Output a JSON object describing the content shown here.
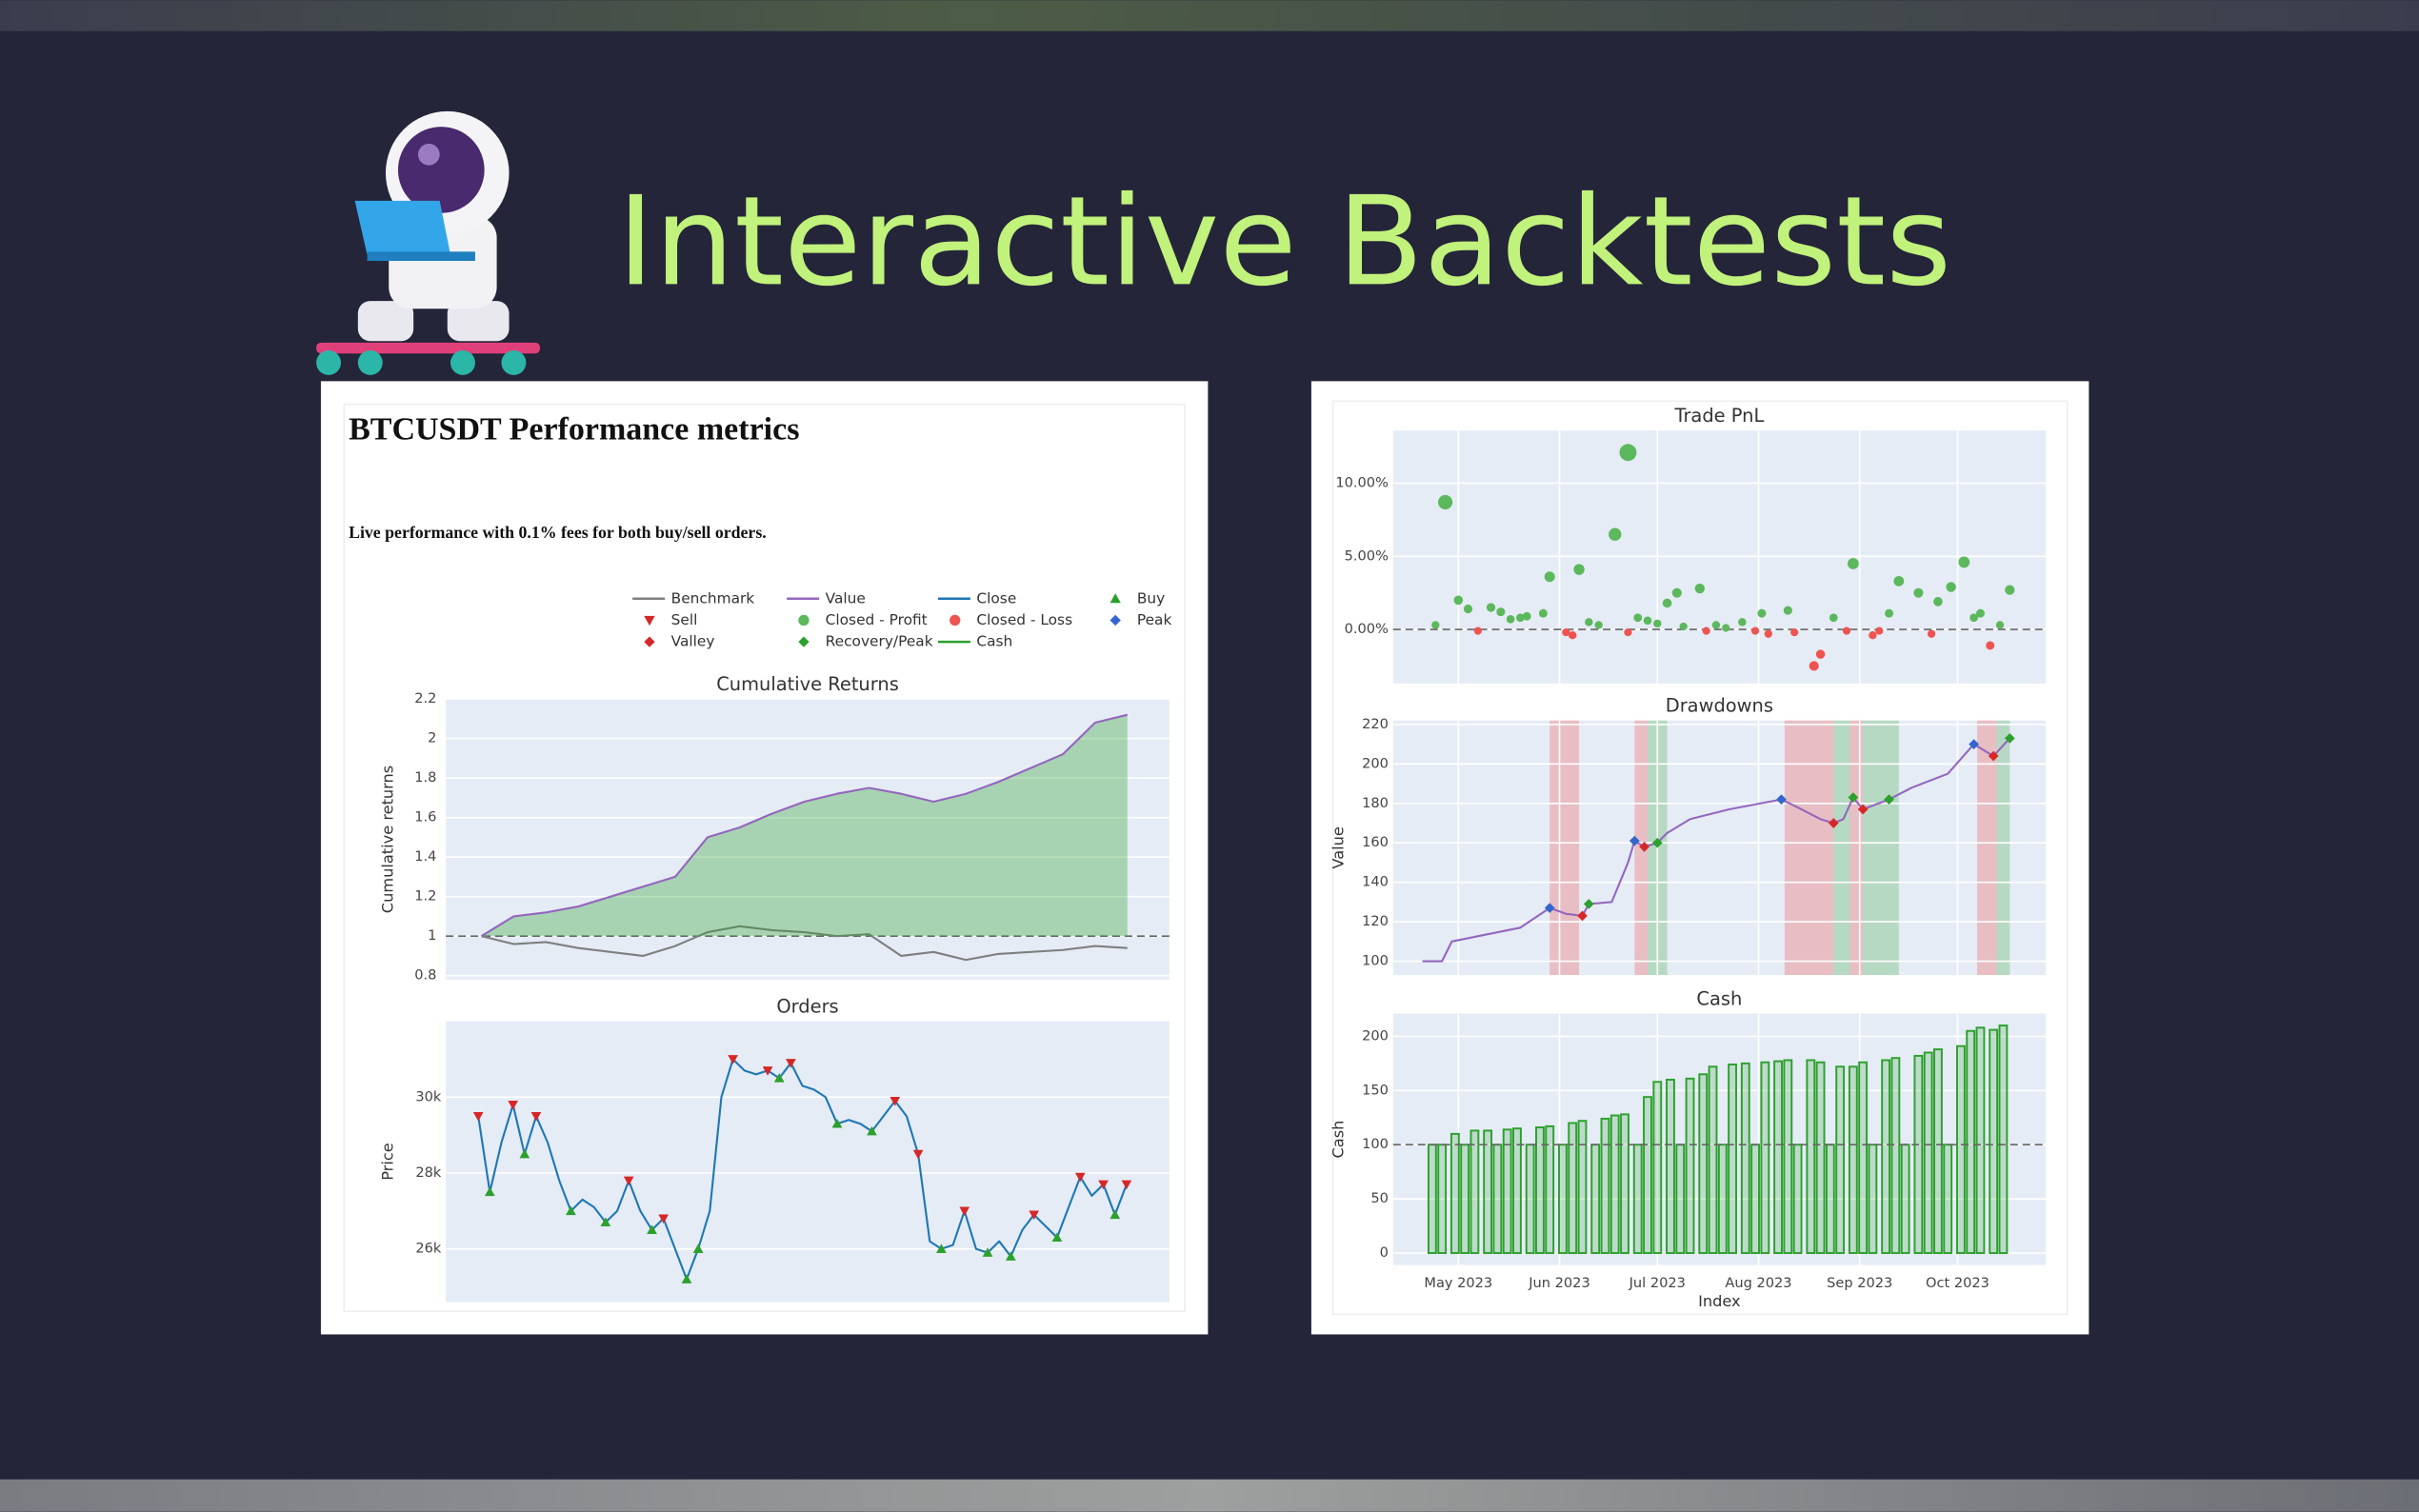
{
  "title": "Interactive Backtests",
  "left_panel": {
    "heading": "BTCUSDT Performance metrics",
    "subtitle": "Live performance with 0.1% fees for both buy/sell orders."
  },
  "chart_data": [
    {
      "type": "line",
      "title": "Cumulative Returns",
      "ylabel": "Cumulative returns",
      "x": [
        0,
        1,
        2,
        3,
        4,
        5,
        6,
        7,
        8,
        9,
        10,
        11,
        12,
        13,
        14,
        15,
        16,
        17,
        18,
        19,
        20
      ],
      "xlim": [
        -1.1,
        21.3
      ],
      "ylim": [
        0.78,
        2.2
      ],
      "yticks": [
        0.8,
        1,
        1.2,
        1.4,
        1.6,
        1.8,
        2,
        2.2
      ],
      "baseline": 1,
      "grid": true,
      "series": [
        {
          "name": "Benchmark",
          "color": "#7f7f7f",
          "values": [
            1.0,
            0.96,
            0.97,
            0.94,
            0.92,
            0.9,
            0.95,
            1.02,
            1.05,
            1.03,
            1.02,
            1.0,
            1.01,
            0.9,
            0.92,
            0.88,
            0.91,
            0.92,
            0.93,
            0.95,
            0.94
          ]
        },
        {
          "name": "Value",
          "color": "#9467bd",
          "fill": "rgba(44,160,44,0.33)",
          "values": [
            1.0,
            1.1,
            1.12,
            1.15,
            1.2,
            1.25,
            1.3,
            1.5,
            1.55,
            1.62,
            1.68,
            1.72,
            1.75,
            1.72,
            1.68,
            1.72,
            1.78,
            1.85,
            1.92,
            2.08,
            2.12
          ]
        }
      ]
    },
    {
      "type": "line",
      "title": "Orders",
      "ylabel": "Price",
      "x": [
        0,
        1,
        2,
        3,
        4,
        5,
        6,
        7,
        8,
        9,
        10,
        11,
        12,
        13,
        14,
        15,
        16,
        17,
        18,
        19,
        20,
        21,
        22,
        23,
        24,
        25,
        26,
        27,
        28,
        29,
        30,
        31,
        32,
        33,
        34,
        35,
        36,
        37,
        38,
        39,
        40,
        41,
        42,
        43,
        44,
        45,
        46,
        47,
        48,
        49,
        50,
        51,
        52,
        53,
        54,
        55,
        56
      ],
      "xlim": [
        -2.8,
        59.7
      ],
      "ylim": [
        24600,
        32000
      ],
      "yticks": [
        {
          "value": 26000,
          "label": "26k"
        },
        {
          "value": 28000,
          "label": "28k"
        },
        {
          "value": 30000,
          "label": "30k"
        }
      ],
      "grid": true,
      "series": [
        {
          "name": "Close",
          "color": "#1f77b4",
          "values": [
            29500,
            27500,
            28800,
            29800,
            28500,
            29500,
            28800,
            27800,
            27000,
            27300,
            27100,
            26700,
            27000,
            27800,
            27000,
            26500,
            26800,
            26000,
            25200,
            26000,
            27000,
            30000,
            31000,
            30700,
            30600,
            30700,
            30500,
            30900,
            30300,
            30200,
            30000,
            29300,
            29400,
            29300,
            29100,
            29500,
            29900,
            29500,
            28500,
            26200,
            26000,
            26100,
            27000,
            26000,
            25900,
            26200,
            25800,
            26500,
            26900,
            26600,
            26300,
            27100,
            27900,
            27400,
            27700,
            26900,
            27700
          ]
        },
        {
          "name": "Buy",
          "color": "#2ca02c",
          "marker": "triangle-up",
          "x": [
            1,
            4,
            8,
            11,
            15,
            18,
            19,
            26,
            31,
            34,
            40,
            44,
            46,
            50,
            55
          ],
          "values": [
            27500,
            28500,
            27000,
            26700,
            26500,
            25200,
            26000,
            30500,
            29300,
            29100,
            26000,
            25900,
            25800,
            26300,
            26900
          ]
        },
        {
          "name": "Sell",
          "color": "#d62728",
          "marker": "triangle-down",
          "x": [
            0,
            3,
            5,
            13,
            16,
            22,
            25,
            27,
            36,
            38,
            42,
            48,
            52,
            54,
            56
          ],
          "values": [
            29500,
            29800,
            29500,
            27800,
            26800,
            31000,
            30700,
            30900,
            29900,
            28500,
            27000,
            26900,
            27900,
            27700,
            27700
          ]
        }
      ]
    },
    {
      "type": "scatter",
      "title": "Trade PnL",
      "xlim": [
        101,
        301
      ],
      "xticks": [
        121,
        152,
        182,
        213,
        244,
        274
      ],
      "xtick_labels": false,
      "ylim": [
        -3.7,
        13.6
      ],
      "yticks": [
        {
          "value": 0,
          "label": "0.00%"
        },
        {
          "value": 5,
          "label": "5.00%"
        },
        {
          "value": 10,
          "label": "10.00%"
        }
      ],
      "baseline": 0,
      "grid": true,
      "series": [
        {
          "name": "Closed - Profit",
          "color": "#5cb85c",
          "marker": "circle",
          "x": [
            114,
            117,
            121,
            124,
            131,
            134,
            137,
            140,
            142,
            147,
            149,
            158,
            161,
            164,
            169,
            173,
            176,
            179,
            182,
            185,
            188,
            190,
            195,
            200,
            203,
            208,
            214,
            222,
            236,
            242,
            253,
            256,
            262,
            268,
            272,
            276,
            279,
            281,
            287,
            290
          ],
          "values": [
            0.3,
            8.7,
            2.0,
            1.4,
            1.5,
            1.2,
            0.7,
            0.8,
            0.9,
            1.1,
            3.6,
            4.1,
            0.5,
            0.3,
            6.5,
            12.1,
            0.8,
            0.6,
            0.4,
            1.8,
            2.5,
            0.2,
            2.8,
            0.3,
            0.1,
            0.5,
            1.1,
            1.3,
            0.8,
            4.5,
            1.1,
            3.3,
            2.5,
            1.9,
            2.9,
            4.6,
            0.8,
            1.1,
            0.3,
            2.7
          ]
        },
        {
          "name": "Closed - Loss",
          "color": "#ef5350",
          "marker": "circle",
          "x": [
            127,
            154,
            156,
            173,
            197,
            212,
            216,
            224,
            230,
            232,
            240,
            248,
            250,
            266,
            284
          ],
          "values": [
            -0.1,
            -0.2,
            -0.4,
            -0.2,
            -0.1,
            -0.1,
            -0.3,
            -0.2,
            -2.5,
            -1.7,
            -0.1,
            -0.4,
            -0.1,
            -0.3,
            -1.1
          ]
        }
      ]
    },
    {
      "type": "line",
      "title": "Drawdowns",
      "ylabel": "Value",
      "xlim": [
        101,
        301
      ],
      "xticks": [
        121,
        152,
        182,
        213,
        244,
        274
      ],
      "xtick_labels": false,
      "ylim": [
        93,
        222
      ],
      "yticks": [
        100,
        120,
        140,
        160,
        180,
        200,
        220
      ],
      "grid": true,
      "x": [
        110,
        116,
        119,
        128,
        140,
        149,
        154,
        159,
        161,
        168,
        173,
        175,
        178,
        182,
        185,
        192,
        204,
        220,
        225,
        232,
        236,
        239,
        242,
        245,
        253,
        260,
        271,
        279,
        285,
        290
      ],
      "spans": [
        {
          "color": "rgba(239,83,80,0.3)",
          "ranges": [
            [
              149,
              158
            ],
            [
              175,
              179
            ],
            [
              221,
              236
            ],
            [
              241,
              245
            ],
            [
              280,
              286
            ]
          ]
        },
        {
          "color": "rgba(44,160,44,0.25)",
          "ranges": [
            [
              179,
              185
            ],
            [
              236,
              241
            ],
            [
              245,
              256
            ],
            [
              286,
              290
            ]
          ]
        }
      ],
      "series": [
        {
          "color": "#9467bd",
          "values": [
            100,
            100,
            110,
            113,
            117,
            127,
            124,
            123,
            129,
            130,
            150,
            161,
            158,
            160,
            165,
            172,
            177,
            182,
            178,
            172,
            170,
            172,
            183,
            177,
            182,
            188,
            195,
            210,
            204,
            213
          ]
        },
        {
          "name": "Peak",
          "color": "#3366cc",
          "marker": "diamond",
          "x": [
            149,
            175,
            220,
            279
          ],
          "values": [
            127,
            161,
            182,
            210
          ]
        },
        {
          "name": "Valley",
          "color": "#d62728",
          "marker": "diamond",
          "x": [
            159,
            178,
            236,
            245,
            285
          ],
          "values": [
            123,
            158,
            170,
            177,
            204
          ]
        },
        {
          "name": "Recovery/Peak",
          "color": "#2ca02c",
          "marker": "diamond",
          "x": [
            161,
            182,
            242,
            253,
            290
          ],
          "values": [
            129,
            160,
            183,
            182,
            213
          ]
        }
      ]
    },
    {
      "type": "bar",
      "title": "Cash",
      "ylabel": "Cash",
      "xlabel": "Index",
      "xlim": [
        101,
        301
      ],
      "xticks": [
        {
          "value": 121,
          "label": "May 2023"
        },
        {
          "value": 152,
          "label": "Jun 2023"
        },
        {
          "value": 182,
          "label": "Jul 2023"
        },
        {
          "value": 213,
          "label": "Aug 2023"
        },
        {
          "value": 244,
          "label": "Sep 2023"
        },
        {
          "value": 274,
          "label": "Oct 2023"
        }
      ],
      "ylim": [
        -11,
        221
      ],
      "yticks": [
        0,
        50,
        100,
        150,
        200
      ],
      "baseline": 100,
      "grid": true,
      "x": [
        113,
        116,
        120,
        123,
        126,
        130,
        133,
        136,
        139,
        143,
        146,
        149,
        153,
        156,
        159,
        163,
        166,
        169,
        172,
        176,
        179,
        182,
        186,
        189,
        192,
        196,
        199,
        202,
        205,
        209,
        212,
        215,
        219,
        222,
        225,
        229,
        232,
        235,
        238,
        242,
        245,
        248,
        252,
        255,
        258,
        262,
        265,
        268,
        271,
        275,
        278,
        281,
        285,
        288
      ],
      "series": [
        {
          "name": "Cash",
          "color": "#2ca02c",
          "values": [
            100,
            100,
            110,
            100,
            113,
            113,
            100,
            114,
            115,
            100,
            116,
            117,
            100,
            120,
            122,
            100,
            124,
            127,
            128,
            100,
            144,
            158,
            160,
            100,
            161,
            165,
            172,
            100,
            174,
            175,
            100,
            176,
            177,
            178,
            100,
            178,
            176,
            100,
            172,
            172,
            176,
            100,
            178,
            180,
            100,
            182,
            185,
            188,
            100,
            191,
            205,
            208,
            206,
            210
          ]
        }
      ]
    }
  ]
}
